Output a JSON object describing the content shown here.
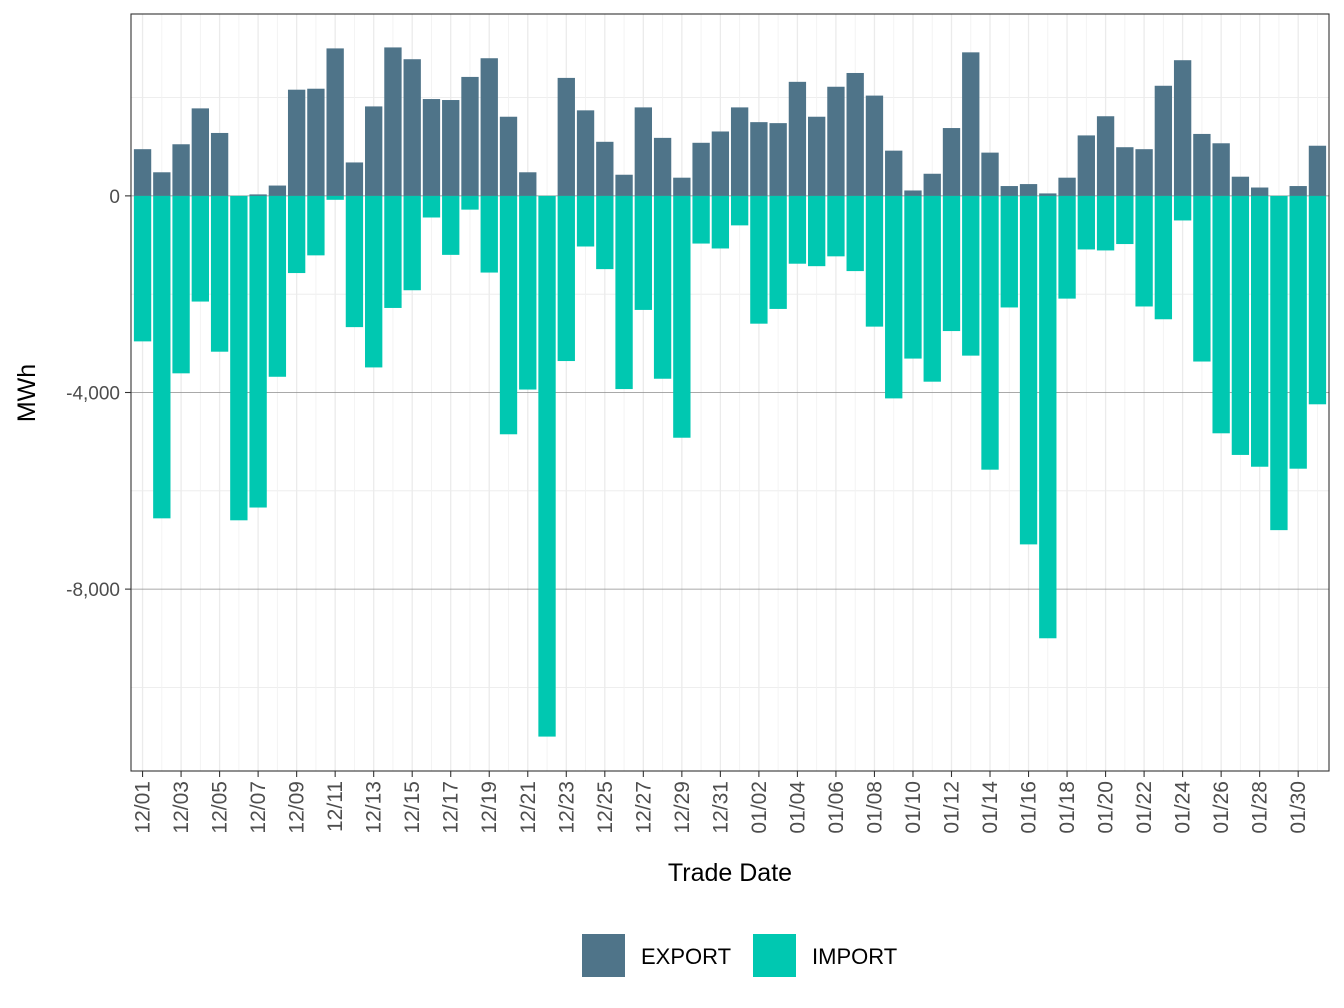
{
  "chart_data": {
    "type": "bar",
    "stacked": true,
    "title": "",
    "xlabel": "Trade Date",
    "ylabel": "MWh",
    "ylim": [
      -11700,
      3700
    ],
    "y_ticks": [
      0,
      -4000,
      -8000
    ],
    "y_tick_labels": [
      "0",
      "-4,000",
      "-8,000"
    ],
    "y_minor_gridlines": [
      2000,
      -2000,
      -6000,
      -10000
    ],
    "grid": true,
    "legend_position": "bottom",
    "colors": {
      "EXPORT": "#4f7489",
      "IMPORT": "#00c8b1"
    },
    "categories": [
      "12/01",
      "12/02",
      "12/03",
      "12/04",
      "12/05",
      "12/06",
      "12/07",
      "12/08",
      "12/09",
      "12/10",
      "12/11",
      "12/12",
      "12/13",
      "12/14",
      "12/15",
      "12/16",
      "12/17",
      "12/18",
      "12/19",
      "12/20",
      "12/21",
      "12/22",
      "12/23",
      "12/24",
      "12/25",
      "12/26",
      "12/27",
      "12/28",
      "12/29",
      "12/30",
      "12/31",
      "01/01",
      "01/02",
      "01/03",
      "01/04",
      "01/05",
      "01/06",
      "01/07",
      "01/08",
      "01/09",
      "01/10",
      "01/11",
      "01/12",
      "01/13",
      "01/14",
      "01/15",
      "01/16",
      "01/17",
      "01/18",
      "01/19",
      "01/20",
      "01/21",
      "01/22",
      "01/23",
      "01/24",
      "01/25",
      "01/26",
      "01/27",
      "01/28",
      "01/29",
      "01/30",
      "01/31"
    ],
    "x_tick_labels": [
      "12/01",
      "12/03",
      "12/05",
      "12/07",
      "12/09",
      "12/11",
      "12/13",
      "12/15",
      "12/17",
      "12/19",
      "12/21",
      "12/23",
      "12/25",
      "12/27",
      "12/29",
      "12/31",
      "01/02",
      "01/04",
      "01/06",
      "01/08",
      "01/10",
      "01/12",
      "01/14",
      "01/16",
      "01/18",
      "01/20",
      "01/22",
      "01/24",
      "01/26",
      "01/28",
      "01/30"
    ],
    "series": [
      {
        "name": "EXPORT",
        "values": [
          950,
          480,
          1050,
          1780,
          1280,
          0,
          30,
          210,
          2160,
          2180,
          3000,
          680,
          1820,
          3020,
          2780,
          1970,
          1950,
          2420,
          2800,
          1610,
          480,
          0,
          2400,
          1740,
          1100,
          430,
          1800,
          1180,
          370,
          1080,
          1310,
          1800,
          1500,
          1480,
          2320,
          1610,
          2220,
          2500,
          2040,
          920,
          110,
          450,
          1380,
          2920,
          880,
          200,
          240,
          50,
          370,
          1230,
          1620,
          990,
          950,
          2240,
          2760,
          1260,
          1070,
          390,
          170,
          0,
          200,
          1020
        ]
      },
      {
        "name": "IMPORT",
        "values": [
          -2960,
          -6560,
          -3610,
          -2150,
          -3170,
          -6600,
          -6340,
          -3680,
          -1570,
          -1210,
          -80,
          -2670,
          -3490,
          -2280,
          -1920,
          -440,
          -1200,
          -280,
          -1560,
          -4850,
          -3940,
          -11000,
          -3360,
          -1030,
          -1490,
          -3930,
          -2320,
          -3720,
          -4920,
          -970,
          -1070,
          -600,
          -2600,
          -2300,
          -1380,
          -1430,
          -1230,
          -1530,
          -2660,
          -4120,
          -3310,
          -3780,
          -2750,
          -3250,
          -5570,
          -2270,
          -7090,
          -9000,
          -2090,
          -1090,
          -1110,
          -980,
          -2250,
          -2510,
          -500,
          -3370,
          -4830,
          -5270,
          -5510,
          -6800,
          -5550,
          -4240
        ]
      }
    ]
  }
}
